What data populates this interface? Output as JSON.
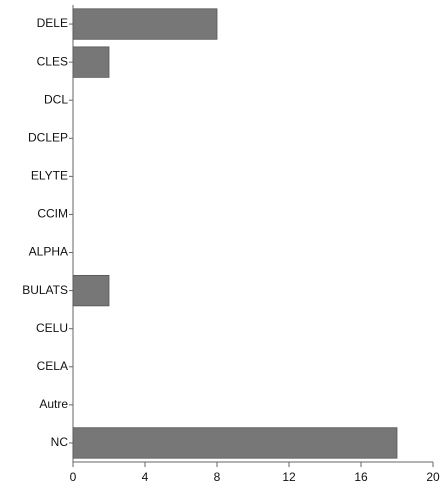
{
  "chart_data": {
    "type": "barh",
    "categories": [
      "DELE",
      "CLES",
      "DCL",
      "DCLEP",
      "ELYTE",
      "CCIM",
      "ALPHA",
      "BULATS",
      "CELU",
      "CELA",
      "Autre",
      "NC"
    ],
    "values": [
      8,
      2,
      0,
      0,
      0,
      0,
      0,
      2,
      0,
      0,
      0,
      18
    ],
    "color": "#777777",
    "xlim": [
      0,
      20
    ],
    "xticks": [
      0,
      4,
      8,
      12,
      16,
      20
    ],
    "grid": false
  }
}
